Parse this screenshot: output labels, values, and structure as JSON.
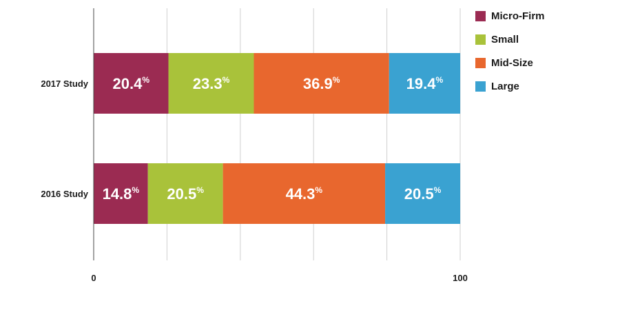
{
  "chart_data": {
    "type": "bar",
    "orientation": "horizontal",
    "stacked": true,
    "categories": [
      "2017 Study",
      "2016 Study"
    ],
    "series": [
      {
        "name": "Micro-Firm",
        "values": [
          20.4,
          14.8
        ],
        "labels": [
          "20.4",
          "14.8"
        ],
        "color": "#9b2b52"
      },
      {
        "name": "Small",
        "values": [
          23.3,
          20.5
        ],
        "labels": [
          "23.3",
          "20.5"
        ],
        "color": "#a9c23a"
      },
      {
        "name": "Mid-Size",
        "values": [
          36.9,
          44.3
        ],
        "labels": [
          "36.9",
          "44.3"
        ],
        "color": "#e8672e"
      },
      {
        "name": "Large",
        "values": [
          19.4,
          20.5
        ],
        "labels": [
          "19.4",
          "20.5"
        ],
        "color": "#3aa2d1"
      }
    ],
    "value_suffix": "%",
    "xlim": [
      0,
      100
    ],
    "x_tick_labels": [
      "0",
      "100"
    ],
    "vertical_gridlines": 5,
    "grid": true,
    "legend_position": "right"
  }
}
